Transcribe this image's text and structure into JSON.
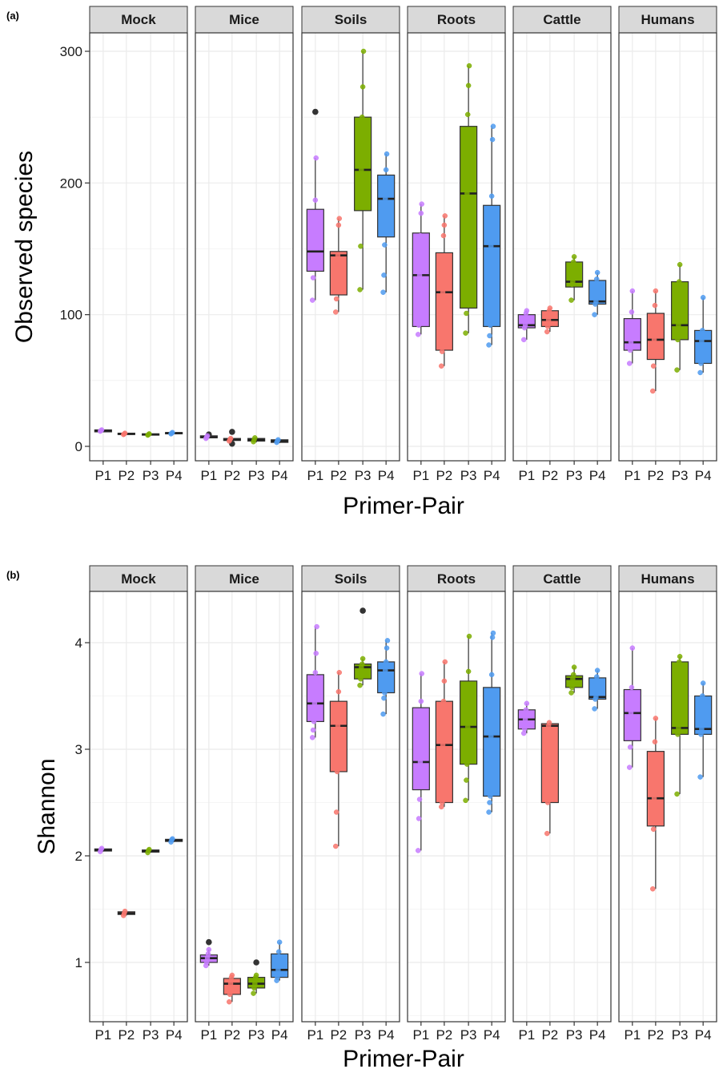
{
  "figure": {
    "colors": {
      "P1": "#c77cff",
      "P2": "#f8766d",
      "P3": "#7cae00",
      "P4": "#4f9bf0",
      "outlier": "#333333",
      "strip_fill": "#d9d9d9",
      "grid": "#ebebeb"
    }
  },
  "chart_data": [
    {
      "type": "box",
      "panel_label": "(a)",
      "facets": [
        "Mock",
        "Mice",
        "Soils",
        "Roots",
        "Cattle",
        "Humans"
      ],
      "categories": [
        "P1",
        "P2",
        "P3",
        "P4"
      ],
      "xlabel": "Primer-Pair",
      "ylabel": "Observed species",
      "ylim": [
        -10,
        325
      ],
      "yticks": [
        0,
        100,
        200,
        300
      ],
      "grid": true,
      "boxes": [
        [
          {
            "q1": 11,
            "median": 12,
            "q3": 12.5,
            "lo": 11,
            "hi": 12.5,
            "points": [
              11.5,
              12,
              12.5
            ],
            "outliers": []
          },
          {
            "q1": 9,
            "median": 9.5,
            "q3": 10,
            "lo": 9,
            "hi": 10,
            "points": [
              9,
              9.5,
              10
            ],
            "outliers": []
          },
          {
            "q1": 8.5,
            "median": 9,
            "q3": 9.5,
            "lo": 8.5,
            "hi": 9.5,
            "points": [
              8.5,
              9,
              9.5
            ],
            "outliers": []
          },
          {
            "q1": 9.5,
            "median": 10,
            "q3": 10.5,
            "lo": 9.5,
            "hi": 10.5,
            "points": [
              9.5,
              10,
              10.5
            ],
            "outliers": []
          }
        ],
        [
          {
            "q1": 6.5,
            "median": 7,
            "q3": 8,
            "lo": 6,
            "hi": 8.5,
            "points": [
              6,
              7,
              8
            ],
            "outliers": [
              9
            ]
          },
          {
            "q1": 4.5,
            "median": 5,
            "q3": 6,
            "lo": 4,
            "hi": 7,
            "points": [
              4,
              5,
              6
            ],
            "outliers": [
              2,
              11
            ]
          },
          {
            "q1": 4,
            "median": 5,
            "q3": 6,
            "lo": 3,
            "hi": 7,
            "points": [
              3.5,
              5,
              6.5
            ],
            "outliers": []
          },
          {
            "q1": 3,
            "median": 4,
            "q3": 5,
            "lo": 2.5,
            "hi": 5.5,
            "points": [
              3,
              4,
              5
            ],
            "outliers": []
          }
        ],
        [
          {
            "q1": 133,
            "median": 148,
            "q3": 180,
            "lo": 111,
            "hi": 219,
            "points": [
              111,
              128,
              140,
              160,
              187,
              219
            ],
            "outliers": [
              254
            ]
          },
          {
            "q1": 115,
            "median": 145,
            "q3": 148,
            "lo": 102,
            "hi": 173,
            "points": [
              102,
              112,
              138,
              145,
              168,
              173
            ],
            "outliers": []
          },
          {
            "q1": 179,
            "median": 210,
            "q3": 250,
            "lo": 119,
            "hi": 300,
            "points": [
              119,
              152,
              210,
              250,
              273,
              300
            ],
            "outliers": []
          },
          {
            "q1": 159,
            "median": 188,
            "q3": 206,
            "lo": 117,
            "hi": 222,
            "points": [
              117,
              130,
              153,
              188,
              210,
              222
            ],
            "outliers": []
          }
        ],
        [
          {
            "q1": 91,
            "median": 130,
            "q3": 162,
            "lo": 85,
            "hi": 184,
            "points": [
              85,
              92,
              130,
              160,
              177,
              184
            ],
            "outliers": []
          },
          {
            "q1": 73,
            "median": 117,
            "q3": 147,
            "lo": 61,
            "hi": 175,
            "points": [
              61,
              72,
              117,
              160,
              168,
              175
            ],
            "outliers": []
          },
          {
            "q1": 105,
            "median": 192,
            "q3": 243,
            "lo": 86,
            "hi": 289,
            "points": [
              86,
              101,
              192,
              252,
              274,
              289
            ],
            "outliers": []
          },
          {
            "q1": 91,
            "median": 152,
            "q3": 183,
            "lo": 77,
            "hi": 243,
            "points": [
              77,
              84,
              92,
              152,
              190,
              233,
              243
            ],
            "outliers": []
          }
        ],
        [
          {
            "q1": 90,
            "median": 92,
            "q3": 100,
            "lo": 81,
            "hi": 103,
            "points": [
              81,
              90,
              92,
              101,
              103
            ],
            "outliers": []
          },
          {
            "q1": 91,
            "median": 96,
            "q3": 103,
            "lo": 87,
            "hi": 105,
            "points": [
              87,
              91,
              96,
              103,
              105
            ],
            "outliers": []
          },
          {
            "q1": 121,
            "median": 125,
            "q3": 140,
            "lo": 111,
            "hi": 144,
            "points": [
              111,
              123,
              125,
              140,
              144
            ],
            "outliers": []
          },
          {
            "q1": 108,
            "median": 110,
            "q3": 126,
            "lo": 100,
            "hi": 132,
            "points": [
              100,
              108,
              110,
              127,
              132
            ],
            "outliers": []
          }
        ],
        [
          {
            "q1": 73,
            "median": 79,
            "q3": 97,
            "lo": 63,
            "hi": 118,
            "points": [
              63,
              73,
              79,
              102,
              118
            ],
            "outliers": []
          },
          {
            "q1": 66,
            "median": 81,
            "q3": 101,
            "lo": 42,
            "hi": 118,
            "points": [
              42,
              61,
              81,
              107,
              118
            ],
            "outliers": []
          },
          {
            "q1": 81,
            "median": 92,
            "q3": 125,
            "lo": 58,
            "hi": 138,
            "points": [
              58,
              81,
              92,
              125,
              138
            ],
            "outliers": []
          },
          {
            "q1": 63,
            "median": 80,
            "q3": 88,
            "lo": 56,
            "hi": 113,
            "points": [
              56,
              63,
              80,
              88,
              113
            ],
            "outliers": []
          }
        ]
      ]
    },
    {
      "type": "box",
      "panel_label": "(b)",
      "facets": [
        "Mock",
        "Mice",
        "Soils",
        "Roots",
        "Cattle",
        "Humans"
      ],
      "categories": [
        "P1",
        "P2",
        "P3",
        "P4"
      ],
      "xlabel": "Primer-Pair",
      "ylabel": "Shannon",
      "ylim": [
        0.5,
        4.5
      ],
      "yticks": [
        1,
        2,
        3,
        4
      ],
      "grid": true,
      "boxes": [
        [
          {
            "q1": 2.045,
            "median": 2.055,
            "q3": 2.065,
            "lo": 2.04,
            "hi": 2.07,
            "points": [
              2.04,
              2.06,
              2.07
            ],
            "outliers": []
          },
          {
            "q1": 1.45,
            "median": 1.46,
            "q3": 1.475,
            "lo": 1.44,
            "hi": 1.48,
            "points": [
              1.44,
              1.46,
              1.48
            ],
            "outliers": []
          },
          {
            "q1": 2.035,
            "median": 2.045,
            "q3": 2.055,
            "lo": 2.03,
            "hi": 2.06,
            "points": [
              2.03,
              2.05,
              2.06
            ],
            "outliers": []
          },
          {
            "q1": 2.135,
            "median": 2.145,
            "q3": 2.155,
            "lo": 2.13,
            "hi": 2.16,
            "points": [
              2.13,
              2.15,
              2.16
            ],
            "outliers": []
          }
        ],
        [
          {
            "q1": 1.0,
            "median": 1.04,
            "q3": 1.07,
            "lo": 0.97,
            "hi": 1.12,
            "points": [
              0.97,
              1.0,
              1.04,
              1.08,
              1.12
            ],
            "outliers": [
              1.19
            ]
          },
          {
            "q1": 0.7,
            "median": 0.8,
            "q3": 0.85,
            "lo": 0.63,
            "hi": 0.88,
            "points": [
              0.63,
              0.7,
              0.8,
              0.86,
              0.88
            ],
            "outliers": []
          },
          {
            "q1": 0.76,
            "median": 0.8,
            "q3": 0.86,
            "lo": 0.71,
            "hi": 0.88,
            "points": [
              0.71,
              0.76,
              0.8,
              0.86,
              0.88
            ],
            "outliers": [
              1.0
            ]
          },
          {
            "q1": 0.86,
            "median": 0.93,
            "q3": 1.08,
            "lo": 0.83,
            "hi": 1.19,
            "points": [
              0.83,
              0.86,
              0.93,
              1.1,
              1.19
            ],
            "outliers": []
          }
        ],
        [
          {
            "q1": 3.26,
            "median": 3.43,
            "q3": 3.7,
            "lo": 3.11,
            "hi": 4.15,
            "points": [
              3.11,
              3.18,
              3.26,
              3.43,
              3.72,
              3.9,
              4.15
            ],
            "outliers": []
          },
          {
            "q1": 2.79,
            "median": 3.22,
            "q3": 3.45,
            "lo": 2.09,
            "hi": 3.72,
            "points": [
              2.09,
              2.41,
              2.79,
              3.22,
              3.54,
              3.72
            ],
            "outliers": []
          },
          {
            "q1": 3.66,
            "median": 3.77,
            "q3": 3.8,
            "lo": 3.6,
            "hi": 3.85,
            "points": [
              3.6,
              3.66,
              3.77,
              3.8,
              3.85
            ],
            "outliers": [
              4.3
            ]
          },
          {
            "q1": 3.53,
            "median": 3.74,
            "q3": 3.82,
            "lo": 3.33,
            "hi": 4.02,
            "points": [
              3.33,
              3.48,
              3.53,
              3.74,
              3.82,
              3.95,
              4.02
            ],
            "outliers": []
          }
        ],
        [
          {
            "q1": 2.62,
            "median": 2.88,
            "q3": 3.39,
            "lo": 2.05,
            "hi": 3.71,
            "points": [
              2.05,
              2.35,
              2.53,
              2.88,
              3.45,
              3.71
            ],
            "outliers": []
          },
          {
            "q1": 2.5,
            "median": 3.04,
            "q3": 3.45,
            "lo": 2.46,
            "hi": 3.82,
            "points": [
              2.46,
              2.5,
              3.04,
              3.45,
              3.64,
              3.82
            ],
            "outliers": []
          },
          {
            "q1": 2.86,
            "median": 3.21,
            "q3": 3.64,
            "lo": 2.52,
            "hi": 4.06,
            "points": [
              2.52,
              2.71,
              2.86,
              3.21,
              3.73,
              4.06
            ],
            "outliers": []
          },
          {
            "q1": 2.56,
            "median": 3.12,
            "q3": 3.58,
            "lo": 2.41,
            "hi": 4.09,
            "points": [
              2.41,
              2.5,
              2.56,
              3.12,
              3.7,
              4.05,
              4.09
            ],
            "outliers": []
          }
        ],
        [
          {
            "q1": 3.19,
            "median": 3.28,
            "q3": 3.37,
            "lo": 3.15,
            "hi": 3.43,
            "points": [
              3.15,
              3.19,
              3.28,
              3.37,
              3.43
            ],
            "outliers": []
          },
          {
            "q1": 2.5,
            "median": 3.22,
            "q3": 3.24,
            "lo": 2.21,
            "hi": 3.25,
            "points": [
              2.21,
              2.5,
              3.22,
              3.25
            ],
            "outliers": []
          },
          {
            "q1": 3.58,
            "median": 3.66,
            "q3": 3.69,
            "lo": 3.53,
            "hi": 3.77,
            "points": [
              3.53,
              3.58,
              3.66,
              3.7,
              3.77
            ],
            "outliers": []
          },
          {
            "q1": 3.47,
            "median": 3.49,
            "q3": 3.67,
            "lo": 3.38,
            "hi": 3.74,
            "points": [
              3.38,
              3.47,
              3.49,
              3.68,
              3.74
            ],
            "outliers": []
          }
        ],
        [
          {
            "q1": 3.08,
            "median": 3.34,
            "q3": 3.56,
            "lo": 2.83,
            "hi": 3.95,
            "points": [
              2.83,
              3.02,
              3.34,
              3.58,
              3.95
            ],
            "outliers": []
          },
          {
            "q1": 2.28,
            "median": 2.54,
            "q3": 2.98,
            "lo": 1.69,
            "hi": 3.29,
            "points": [
              1.69,
              2.25,
              2.54,
              3.07,
              3.29
            ],
            "outliers": []
          },
          {
            "q1": 3.14,
            "median": 3.2,
            "q3": 3.82,
            "lo": 2.58,
            "hi": 3.87,
            "points": [
              2.58,
              3.14,
              3.2,
              3.82,
              3.87
            ],
            "outliers": []
          },
          {
            "q1": 3.14,
            "median": 3.19,
            "q3": 3.5,
            "lo": 2.74,
            "hi": 3.62,
            "points": [
              2.74,
              3.14,
              3.19,
              3.5,
              3.62
            ],
            "outliers": []
          }
        ]
      ]
    }
  ]
}
